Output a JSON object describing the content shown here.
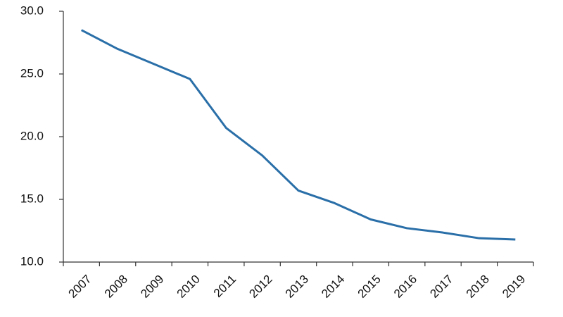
{
  "chart_data": {
    "type": "line",
    "categories": [
      "2007",
      "2008",
      "2009",
      "2010",
      "2011",
      "2012",
      "2013",
      "2014",
      "2015",
      "2016",
      "2017",
      "2018",
      "2019"
    ],
    "values": [
      28.5,
      27.0,
      25.8,
      24.6,
      20.7,
      18.5,
      15.7,
      14.7,
      13.4,
      12.7,
      12.35,
      11.9,
      11.8
    ],
    "color": "#2a6fa8",
    "ylim": [
      10,
      30
    ],
    "yticks": [
      {
        "value": 10,
        "label": "10.0"
      },
      {
        "value": 15,
        "label": "15.0"
      },
      {
        "value": 20,
        "label": "20.0"
      },
      {
        "value": 25,
        "label": "25.0"
      },
      {
        "value": 30,
        "label": "30.0"
      }
    ],
    "grid": false
  }
}
